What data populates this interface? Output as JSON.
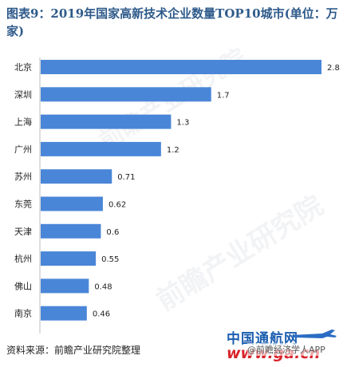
{
  "title": "图表9：2019年国家高新技术企业数量TOP10城市(单位：万家)",
  "source": "资料来源：前瞻产业研究院整理",
  "watermark_text": "前瞻产业研究院",
  "logo": {
    "brand": "中国通航网",
    "domain": "www.ga.cn",
    "sub": "@前瞻经济学人APP"
  },
  "colors": {
    "bar": "#4a86d8",
    "title": "#2e5a8a"
  },
  "chart_data": {
    "type": "bar",
    "orientation": "horizontal",
    "title": "图表9：2019年国家高新技术企业数量TOP10城市(单位：万家)",
    "categories": [
      "北京",
      "深圳",
      "上海",
      "广州",
      "苏州",
      "东莞",
      "天津",
      "杭州",
      "佛山",
      "南京"
    ],
    "values": [
      2.8,
      1.7,
      1.3,
      1.2,
      0.71,
      0.62,
      0.6,
      0.55,
      0.48,
      0.46
    ],
    "value_labels": [
      "2.8",
      "1.7",
      "1.3",
      "1.2",
      "0.71",
      "0.62",
      "0.6",
      "0.55",
      "0.48",
      "0.46"
    ],
    "xlabel": "",
    "ylabel": "",
    "xlim": [
      0,
      2.8
    ],
    "grid": false,
    "legend": "none"
  }
}
